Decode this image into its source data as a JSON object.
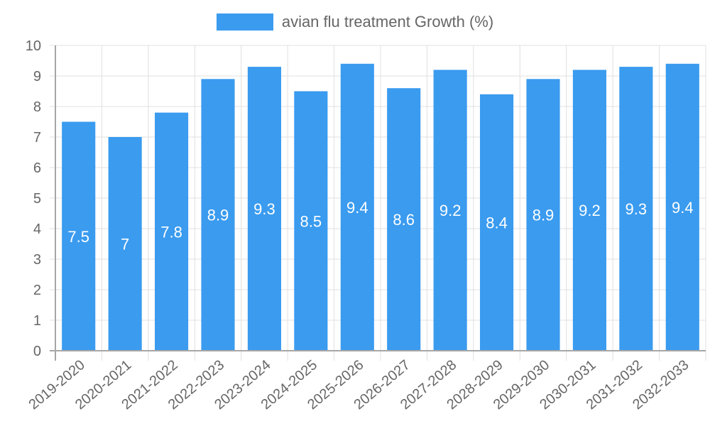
{
  "chart_data": {
    "type": "bar",
    "title": "",
    "xlabel": "",
    "ylabel": "",
    "ylim": [
      0,
      10
    ],
    "yticks": [
      0,
      1,
      2,
      3,
      4,
      5,
      6,
      7,
      8,
      9,
      10
    ],
    "grid": true,
    "legend_position": "top",
    "categories": [
      "2019-2020",
      "2020-2021",
      "2021-2022",
      "2022-2023",
      "2023-2024",
      "2024-2025",
      "2025-2026",
      "2026-2027",
      "2027-2028",
      "2028-2029",
      "2029-2030",
      "2030-2031",
      "2031-2032",
      "2032-2033"
    ],
    "series": [
      {
        "name": "avian flu treatment Growth (%)",
        "color": "#3a9bef",
        "values": [
          7.5,
          7,
          7.8,
          8.9,
          9.3,
          8.5,
          9.4,
          8.6,
          9.2,
          8.4,
          8.9,
          9.2,
          9.3,
          9.4
        ],
        "data_labels": [
          "7.5",
          "7",
          "7.8",
          "8.9",
          "9.3",
          "8.5",
          "9.4",
          "8.6",
          "9.2",
          "8.4",
          "8.9",
          "9.2",
          "9.3",
          "9.4"
        ]
      }
    ]
  },
  "legend": {
    "label": "avian flu treatment Growth (%)"
  },
  "colors": {
    "bar": "#3a9bef",
    "grid": "#e0e0e0",
    "axis": "#a6a6a6",
    "tick_text": "#666666",
    "data_label": "#ffffff"
  }
}
